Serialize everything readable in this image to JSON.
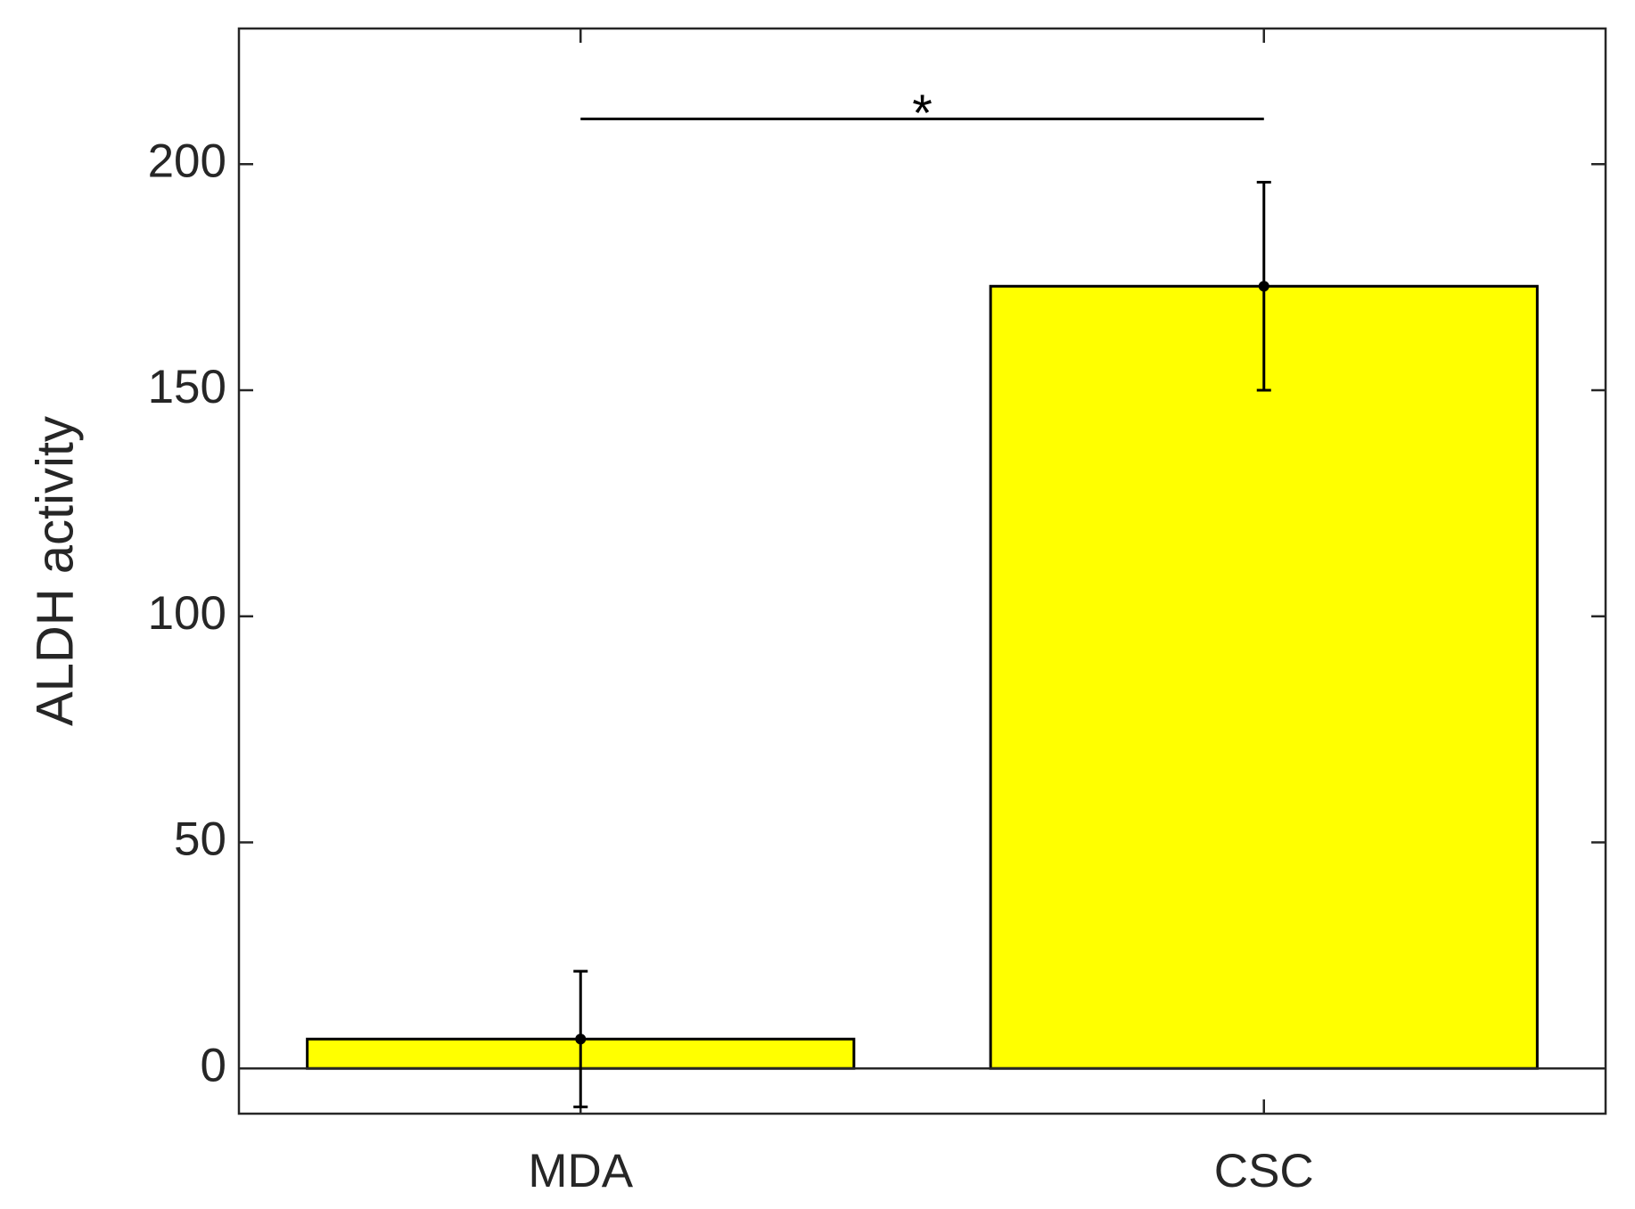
{
  "chart_data": {
    "type": "bar",
    "ylabel": "ALDH activity",
    "categories": [
      "MDA",
      "CSC"
    ],
    "values": [
      6.5,
      173
    ],
    "errors": [
      15,
      23
    ],
    "color": "#ffff00",
    "ylim": [
      -10,
      230
    ],
    "yticks": [
      0,
      50,
      100,
      150,
      200
    ],
    "annotations": [
      {
        "text": "*",
        "y": 210
      }
    ]
  }
}
